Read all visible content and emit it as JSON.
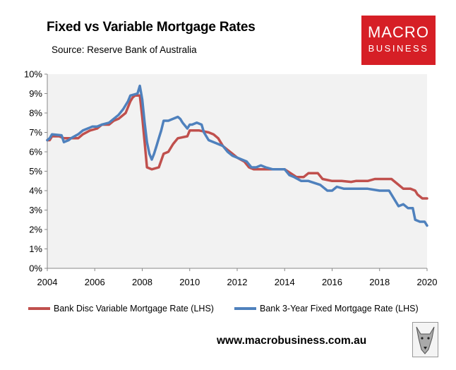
{
  "title": "Fixed vs Variable Mortgage Rates",
  "source": "Source: Reserve Bank of Australia",
  "logo": {
    "line1": "MACRO",
    "line2": "BUSINESS",
    "color": "#d61f26",
    "icon": "wolf-mascot-icon"
  },
  "website": "www.macrobusiness.com.au",
  "colors": {
    "variable": "#c0504d",
    "fixed": "#4f81bd",
    "plot_bg": "#f2f2f2"
  },
  "chart_data": {
    "type": "line",
    "title": "Fixed vs Variable Mortgage Rates",
    "xlim": [
      2004,
      2020
    ],
    "ylim": [
      0,
      10
    ],
    "x_ticks": [
      "2004",
      "2006",
      "2008",
      "2010",
      "2012",
      "2014",
      "2016",
      "2018",
      "2020"
    ],
    "y_ticks": [
      "0%",
      "1%",
      "2%",
      "3%",
      "4%",
      "5%",
      "6%",
      "7%",
      "8%",
      "9%",
      "10%"
    ],
    "grid": false,
    "legend": "bottom",
    "series": [
      {
        "name": "Bank Disc Variable Mortgage Rate (LHS)",
        "color": "#c0504d",
        "points": [
          [
            2004,
            6.6
          ],
          [
            2004.1,
            6.6
          ],
          [
            2004.2,
            6.8
          ],
          [
            2004.5,
            6.8
          ],
          [
            2004.7,
            6.7
          ],
          [
            2005,
            6.7
          ],
          [
            2005.3,
            6.7
          ],
          [
            2005.5,
            6.9
          ],
          [
            2005.8,
            7.1
          ],
          [
            2006.1,
            7.2
          ],
          [
            2006.3,
            7.4
          ],
          [
            2006.6,
            7.4
          ],
          [
            2006.8,
            7.6
          ],
          [
            2007,
            7.7
          ],
          [
            2007.3,
            8.0
          ],
          [
            2007.5,
            8.6
          ],
          [
            2007.6,
            8.8
          ],
          [
            2007.7,
            8.9
          ],
          [
            2007.9,
            8.9
          ],
          [
            2008,
            7.8
          ],
          [
            2008.1,
            6.5
          ],
          [
            2008.2,
            5.2
          ],
          [
            2008.4,
            5.1
          ],
          [
            2008.7,
            5.2
          ],
          [
            2008.9,
            5.9
          ],
          [
            2009.1,
            6.0
          ],
          [
            2009.3,
            6.4
          ],
          [
            2009.5,
            6.7
          ],
          [
            2009.9,
            6.8
          ],
          [
            2010,
            7.1
          ],
          [
            2010.4,
            7.1
          ],
          [
            2010.8,
            7.0
          ],
          [
            2011,
            6.9
          ],
          [
            2011.2,
            6.7
          ],
          [
            2011.4,
            6.3
          ],
          [
            2011.6,
            6.1
          ],
          [
            2011.8,
            5.9
          ],
          [
            2012,
            5.7
          ],
          [
            2012.3,
            5.5
          ],
          [
            2012.5,
            5.2
          ],
          [
            2012.7,
            5.1
          ],
          [
            2012.9,
            5.1
          ],
          [
            2013,
            5.1
          ],
          [
            2013.5,
            5.1
          ],
          [
            2014,
            5.1
          ],
          [
            2014.5,
            4.7
          ],
          [
            2014.8,
            4.7
          ],
          [
            2015,
            4.9
          ],
          [
            2015.4,
            4.9
          ],
          [
            2015.6,
            4.6
          ],
          [
            2016,
            4.5
          ],
          [
            2016.4,
            4.5
          ],
          [
            2016.8,
            4.45
          ],
          [
            2017,
            4.5
          ],
          [
            2017.5,
            4.5
          ],
          [
            2017.8,
            4.6
          ],
          [
            2018,
            4.6
          ],
          [
            2018.5,
            4.6
          ],
          [
            2018.7,
            4.4
          ],
          [
            2019,
            4.1
          ],
          [
            2019.3,
            4.1
          ],
          [
            2019.5,
            4.0
          ],
          [
            2019.6,
            3.8
          ],
          [
            2019.8,
            3.6
          ],
          [
            2020,
            3.6
          ]
        ]
      },
      {
        "name": "Bank 3-Year Fixed Mortgage Rate (LHS)",
        "color": "#4f81bd",
        "points": [
          [
            2004,
            6.6
          ],
          [
            2004.1,
            6.7
          ],
          [
            2004.2,
            6.9
          ],
          [
            2004.6,
            6.85
          ],
          [
            2004.7,
            6.5
          ],
          [
            2004.9,
            6.6
          ],
          [
            2005,
            6.7
          ],
          [
            2005.3,
            6.9
          ],
          [
            2005.5,
            7.1
          ],
          [
            2005.7,
            7.2
          ],
          [
            2005.9,
            7.3
          ],
          [
            2006.1,
            7.3
          ],
          [
            2006.3,
            7.4
          ],
          [
            2006.6,
            7.5
          ],
          [
            2006.8,
            7.7
          ],
          [
            2007,
            7.9
          ],
          [
            2007.2,
            8.2
          ],
          [
            2007.4,
            8.6
          ],
          [
            2007.5,
            8.9
          ],
          [
            2007.8,
            9.0
          ],
          [
            2007.9,
            9.4
          ],
          [
            2008,
            8.7
          ],
          [
            2008.1,
            7.5
          ],
          [
            2008.2,
            6.5
          ],
          [
            2008.3,
            5.9
          ],
          [
            2008.4,
            5.6
          ],
          [
            2008.5,
            5.9
          ],
          [
            2008.6,
            6.3
          ],
          [
            2008.7,
            6.7
          ],
          [
            2008.8,
            7.1
          ],
          [
            2008.9,
            7.6
          ],
          [
            2009.1,
            7.6
          ],
          [
            2009.3,
            7.7
          ],
          [
            2009.5,
            7.8
          ],
          [
            2009.6,
            7.7
          ],
          [
            2009.7,
            7.5
          ],
          [
            2009.9,
            7.2
          ],
          [
            2010,
            7.4
          ],
          [
            2010.1,
            7.4
          ],
          [
            2010.3,
            7.5
          ],
          [
            2010.5,
            7.4
          ],
          [
            2010.6,
            7.0
          ],
          [
            2010.8,
            6.6
          ],
          [
            2011,
            6.5
          ],
          [
            2011.2,
            6.4
          ],
          [
            2011.4,
            6.3
          ],
          [
            2011.6,
            6.0
          ],
          [
            2011.8,
            5.8
          ],
          [
            2012,
            5.7
          ],
          [
            2012.2,
            5.6
          ],
          [
            2012.4,
            5.5
          ],
          [
            2012.6,
            5.2
          ],
          [
            2012.8,
            5.2
          ],
          [
            2013,
            5.3
          ],
          [
            2013.2,
            5.2
          ],
          [
            2013.5,
            5.1
          ],
          [
            2014,
            5.1
          ],
          [
            2014.2,
            4.8
          ],
          [
            2014.4,
            4.7
          ],
          [
            2014.7,
            4.5
          ],
          [
            2015,
            4.5
          ],
          [
            2015.5,
            4.3
          ],
          [
            2015.8,
            4.0
          ],
          [
            2016,
            4.0
          ],
          [
            2016.2,
            4.2
          ],
          [
            2016.5,
            4.1
          ],
          [
            2017,
            4.1
          ],
          [
            2017.5,
            4.1
          ],
          [
            2018,
            4.0
          ],
          [
            2018.4,
            4.0
          ],
          [
            2018.6,
            3.6
          ],
          [
            2018.8,
            3.2
          ],
          [
            2019,
            3.3
          ],
          [
            2019.2,
            3.1
          ],
          [
            2019.4,
            3.1
          ],
          [
            2019.5,
            2.5
          ],
          [
            2019.7,
            2.4
          ],
          [
            2019.9,
            2.4
          ],
          [
            2020,
            2.2
          ]
        ]
      }
    ]
  }
}
